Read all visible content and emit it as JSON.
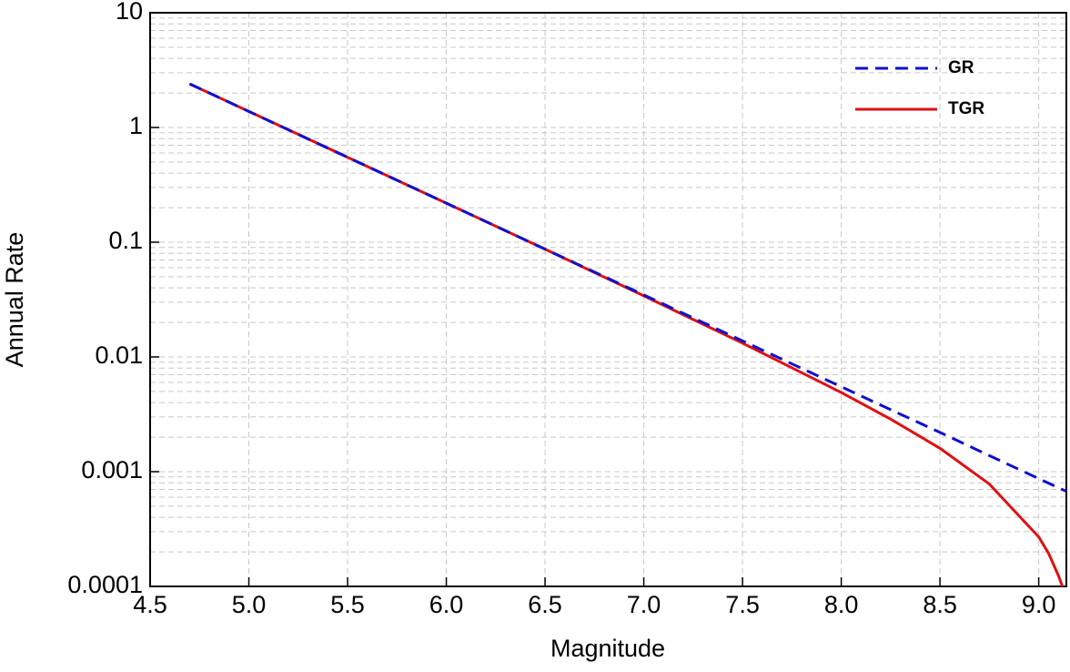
{
  "chart_data": {
    "type": "line",
    "x_label": "Magnitude",
    "y_label": "Annual Rate",
    "x": [
      4.7,
      5,
      5.5,
      6,
      6.5,
      7,
      7.5,
      8,
      8.25,
      8.5,
      8.75,
      9,
      9.05,
      9.1,
      9.12,
      9.14
    ],
    "series": [
      {
        "name": "GR",
        "color": "#1010d0",
        "dash": true,
        "values": [
          2.4,
          1.38,
          0.55,
          0.219,
          0.087,
          0.0347,
          0.0138,
          0.0055,
          0.00347,
          0.0022,
          0.00138,
          0.00087,
          0.000794,
          0.000724,
          0.000698,
          0.000673
        ]
      },
      {
        "name": "TGR",
        "color": "#e01010",
        "dash": false,
        "values": [
          2.4,
          1.38,
          0.55,
          0.219,
          0.087,
          0.0341,
          0.0132,
          0.0049,
          0.00287,
          0.0016,
          0.00078,
          0.00027,
          0.000194,
          0.000124,
          0.0001,
          null
        ]
      }
    ],
    "xlim": [
      4.5,
      9.14
    ],
    "xticks": [
      4.5,
      {
        "value": 5,
        "label": "5.0"
      },
      5.5,
      {
        "value": 6,
        "label": "6.0"
      },
      6.5,
      {
        "value": 7,
        "label": "7.0"
      },
      7.5,
      {
        "value": 8,
        "label": "8.0"
      },
      8.5,
      {
        "value": 9,
        "label": "9.0"
      }
    ],
    "ylim": [
      0.0001,
      10
    ],
    "yticks": [
      0.0001,
      0.001,
      0.01,
      0.1,
      1,
      10
    ],
    "ylog": true,
    "grid": true,
    "minor_grid": true,
    "legend": "upper-right"
  }
}
